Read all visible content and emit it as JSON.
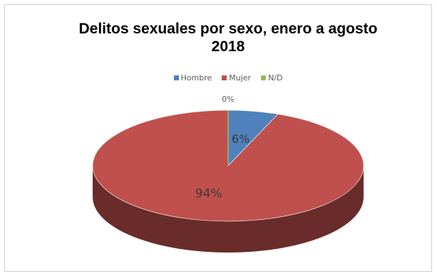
{
  "chart_data": {
    "type": "pie",
    "title_line1": "Delitos sexuales por sexo, enero a agosto",
    "title_line2": "2018",
    "legend_position": "top",
    "three_d": true,
    "series": [
      {
        "name": "Hombre",
        "value": 6,
        "label": "6%",
        "color": "#4f81bd"
      },
      {
        "name": "Mujer",
        "value": 94,
        "label": "94%",
        "color": "#c0504d"
      },
      {
        "name": "N/D",
        "value": 0,
        "label": "0%",
        "color": "#9bbb59"
      }
    ]
  }
}
